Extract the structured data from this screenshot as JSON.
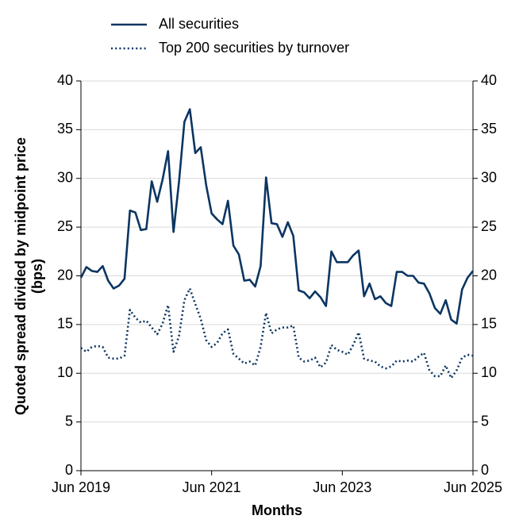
{
  "chart_data": {
    "type": "line",
    "y_label": "Quoted spread divided by midpoint price (bps)",
    "x_label": "Months",
    "x": [
      "2019-06",
      "2019-07",
      "2019-08",
      "2019-09",
      "2019-10",
      "2019-11",
      "2019-12",
      "2020-01",
      "2020-02",
      "2020-03",
      "2020-04",
      "2020-05",
      "2020-06",
      "2020-07",
      "2020-08",
      "2020-09",
      "2020-10",
      "2020-11",
      "2020-12",
      "2021-01",
      "2021-02",
      "2021-03",
      "2021-04",
      "2021-05",
      "2021-06",
      "2021-07",
      "2021-08",
      "2021-09",
      "2021-10",
      "2021-11",
      "2021-12",
      "2022-01",
      "2022-02",
      "2022-03",
      "2022-04",
      "2022-05",
      "2022-06",
      "2022-07",
      "2022-08",
      "2022-09",
      "2022-10",
      "2022-11",
      "2022-12",
      "2023-01",
      "2023-02",
      "2023-03",
      "2023-04",
      "2023-05",
      "2023-06",
      "2023-07",
      "2023-08",
      "2023-09",
      "2023-10",
      "2023-11",
      "2023-12",
      "2024-01",
      "2024-02",
      "2024-03",
      "2024-04",
      "2024-05",
      "2024-06",
      "2024-07",
      "2024-08",
      "2024-09",
      "2024-10",
      "2024-11",
      "2024-12",
      "2025-01",
      "2025-02",
      "2025-03",
      "2025-04",
      "2025-05",
      "2025-06"
    ],
    "xticks": [
      {
        "value": "2019-06",
        "label": "Jun 2019"
      },
      {
        "value": "2021-06",
        "label": "Jun 2021"
      },
      {
        "value": "2023-06",
        "label": "Jun 2023"
      },
      {
        "value": "2025-06",
        "label": "Jun 2025"
      }
    ],
    "ylim": [
      0,
      40
    ],
    "yticks": [
      0,
      5,
      10,
      15,
      20,
      25,
      30,
      35,
      40
    ],
    "grid": true,
    "legend": "top-left",
    "series": [
      {
        "name": "All securities",
        "color": "#0b3562",
        "style": "solid",
        "values": [
          19.8,
          20.9,
          20.5,
          20.4,
          21.0,
          19.5,
          18.7,
          19.0,
          19.7,
          26.7,
          26.5,
          24.7,
          24.8,
          29.7,
          27.6,
          29.9,
          32.8,
          24.5,
          29.6,
          35.8,
          37.1,
          32.6,
          33.2,
          29.3,
          26.4,
          25.8,
          25.3,
          27.7,
          23.1,
          22.2,
          19.5,
          19.6,
          18.9,
          21.0,
          30.1,
          25.4,
          25.3,
          24.0,
          25.5,
          24.1,
          18.5,
          18.3,
          17.7,
          18.4,
          17.8,
          16.9,
          22.5,
          21.4,
          21.4,
          21.4,
          22.1,
          22.6,
          17.9,
          19.2,
          17.6,
          17.9,
          17.2,
          16.9,
          20.4,
          20.4,
          20.0,
          20.0,
          19.3,
          19.2,
          18.2,
          16.7,
          16.1,
          17.5,
          15.5,
          15.1,
          18.6,
          19.8,
          20.5
        ]
      },
      {
        "name": "Top 200 securities by turnover",
        "color": "#0b3562",
        "style": "dotted",
        "values": [
          12.6,
          12.2,
          12.7,
          12.8,
          12.7,
          11.6,
          11.5,
          11.5,
          11.8,
          16.5,
          15.7,
          15.2,
          15.4,
          14.7,
          14.0,
          15.1,
          17.0,
          12.2,
          13.8,
          17.5,
          18.7,
          17.1,
          15.6,
          13.4,
          12.7,
          13.1,
          14.1,
          14.5,
          12.0,
          11.5,
          11.0,
          11.2,
          10.8,
          12.7,
          16.2,
          14.1,
          14.5,
          14.7,
          14.7,
          14.9,
          11.6,
          11.2,
          11.3,
          11.6,
          10.6,
          11.1,
          12.9,
          12.4,
          12.2,
          11.9,
          12.9,
          14.2,
          11.5,
          11.3,
          11.2,
          10.7,
          10.5,
          10.7,
          11.3,
          11.2,
          11.3,
          11.2,
          11.7,
          12.1,
          10.3,
          9.7,
          9.7,
          10.8,
          9.5,
          10.3,
          11.6,
          11.9,
          11.8
        ]
      }
    ]
  }
}
